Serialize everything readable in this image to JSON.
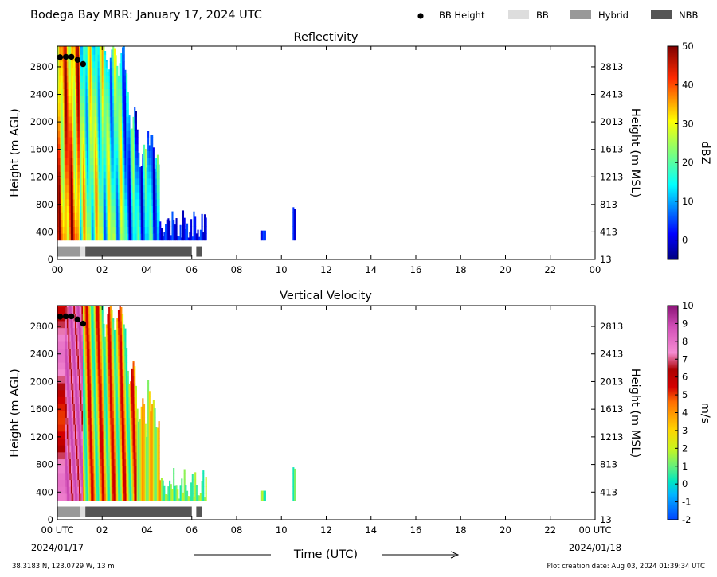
{
  "header": {
    "title": "Bodega Bay MRR:  January 17, 2024 UTC",
    "legend": [
      {
        "label": "BB Height",
        "symbol": "dot",
        "color": "#000000"
      },
      {
        "label": "BB",
        "symbol": "box",
        "color": "#dddddd"
      },
      {
        "label": "Hybrid",
        "symbol": "box",
        "color": "#999999"
      },
      {
        "label": "NBB",
        "symbol": "box",
        "color": "#555555"
      }
    ]
  },
  "chart_data": [
    {
      "type": "heatmap",
      "title": "Reflectivity",
      "xlabel": "",
      "ylabel": "Height (m AGL)",
      "ylabel_right": "Height (m MSL)",
      "xlim": [
        0,
        24
      ],
      "ylim": [
        0,
        3100
      ],
      "x_tick_labels": [
        "00",
        "02",
        "04",
        "06",
        "08",
        "10",
        "12",
        "14",
        "16",
        "18",
        "20",
        "22",
        "00"
      ],
      "y_ticks": [
        0,
        400,
        800,
        1200,
        1600,
        2000,
        2400,
        2800
      ],
      "y_tick_labels": [
        "0",
        "400",
        "800",
        "1200",
        "1600",
        "2000",
        "2400",
        "2800"
      ],
      "y_right_tick_labels": [
        "13",
        "413",
        "813",
        "1213",
        "1613",
        "2013",
        "2413",
        "2813"
      ],
      "colorbar": {
        "label": "dBZ",
        "min": -5,
        "max": 50,
        "ticks": [
          0,
          10,
          20,
          30,
          40,
          50
        ],
        "tick_labels": [
          "0",
          "10",
          "20",
          "30",
          "40",
          "50"
        ],
        "colormap": "jet"
      },
      "bb_height_points": [
        {
          "x": 0.12,
          "y": 2940
        },
        {
          "x": 0.38,
          "y": 2945
        },
        {
          "x": 0.63,
          "y": 2945
        },
        {
          "x": 0.9,
          "y": 2900
        },
        {
          "x": 1.15,
          "y": 2840
        }
      ],
      "classification_bars": [
        {
          "start": 0.0,
          "end": 1.0,
          "class": "Hybrid"
        },
        {
          "start": 1.0,
          "end": 1.25,
          "class": "BB"
        },
        {
          "start": 1.25,
          "end": 6.0,
          "class": "NBB"
        },
        {
          "start": 6.2,
          "end": 6.45,
          "class": "NBB"
        }
      ]
    },
    {
      "type": "heatmap",
      "title": "Vertical Velocity",
      "xlabel": "Time (UTC)",
      "ylabel": "Height (m AGL)",
      "ylabel_right": "Height (m MSL)",
      "xlim": [
        0,
        24
      ],
      "ylim": [
        0,
        3100
      ],
      "x_tick_labels": [
        "00 UTC",
        "02",
        "04",
        "06",
        "08",
        "10",
        "12",
        "14",
        "16",
        "18",
        "20",
        "22",
        "00 UTC"
      ],
      "x_date_labels": [
        "2024/01/17",
        "2024/01/18"
      ],
      "y_ticks": [
        0,
        400,
        800,
        1200,
        1600,
        2000,
        2400,
        2800
      ],
      "y_tick_labels": [
        "0",
        "400",
        "800",
        "1200",
        "1600",
        "2000",
        "2400",
        "2800"
      ],
      "y_right_tick_labels": [
        "13",
        "413",
        "813",
        "1213",
        "1613",
        "2013",
        "2413",
        "2813"
      ],
      "colorbar": {
        "label": "m/s",
        "min": -2,
        "max": 10,
        "ticks": [
          -2,
          -1,
          0,
          1,
          2,
          3,
          4,
          5,
          6,
          7,
          8,
          9,
          10
        ],
        "tick_labels": [
          "-2",
          "-1",
          "0",
          "1",
          "2",
          "3",
          "4",
          "5",
          "6",
          "7",
          "8",
          "9",
          "10"
        ],
        "colormap": "velocity"
      },
      "bb_height_points": [
        {
          "x": 0.12,
          "y": 2940
        },
        {
          "x": 0.38,
          "y": 2945
        },
        {
          "x": 0.63,
          "y": 2945
        },
        {
          "x": 0.9,
          "y": 2900
        },
        {
          "x": 1.15,
          "y": 2840
        }
      ],
      "classification_bars": [
        {
          "start": 0.0,
          "end": 1.0,
          "class": "Hybrid"
        },
        {
          "start": 1.0,
          "end": 1.25,
          "class": "BB"
        },
        {
          "start": 1.25,
          "end": 6.0,
          "class": "NBB"
        },
        {
          "start": 6.2,
          "end": 6.45,
          "class": "NBB"
        }
      ]
    }
  ],
  "footer": {
    "location": "38.3183 N, 123.0729 W, 13 m",
    "creation_date": "Plot creation date: Aug 03, 2024 01:39:34 UTC"
  }
}
